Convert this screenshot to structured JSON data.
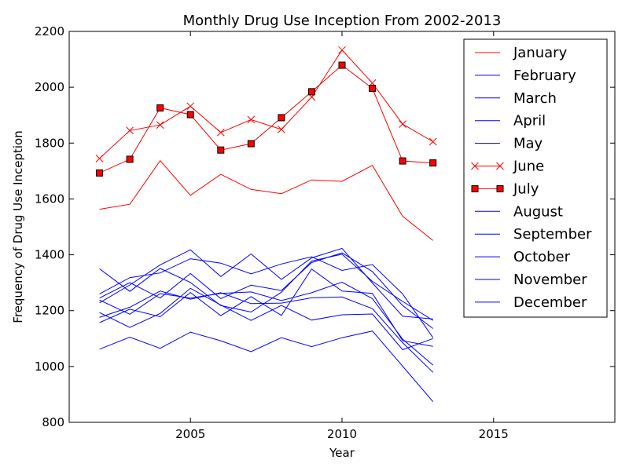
{
  "chart_data": {
    "type": "line",
    "title": "Monthly Drug Use Inception From 2002-2013",
    "xlabel": "Year",
    "ylabel": "Frequency of Drug Use Inception",
    "xlim": [
      2001,
      2019
    ],
    "ylim": [
      800,
      2200
    ],
    "xticks": [
      2005,
      2010,
      2015
    ],
    "yticks": [
      800,
      1000,
      1200,
      1400,
      1600,
      1800,
      2000,
      2200
    ],
    "grid": false,
    "legend_position": "top-right",
    "x": [
      2002,
      2003,
      2004,
      2005,
      2006,
      2007,
      2008,
      2009,
      2010,
      2011,
      2012,
      2013
    ],
    "series": [
      {
        "name": "January",
        "color": "#ff0000",
        "marker": "none",
        "values": [
          1563,
          1581,
          1737,
          1613,
          1688,
          1634,
          1619,
          1668,
          1663,
          1720,
          1538,
          1451
        ]
      },
      {
        "name": "February",
        "color": "#0000ff",
        "marker": "none",
        "values": [
          1062,
          1105,
          1065,
          1123,
          1092,
          1053,
          1103,
          1071,
          1103,
          1127,
          1001,
          874
        ]
      },
      {
        "name": "March",
        "color": "#0000ff",
        "marker": "none",
        "values": [
          1157,
          1205,
          1178,
          1265,
          1182,
          1250,
          1183,
          1349,
          1270,
          1262,
          1092,
          1072
        ]
      },
      {
        "name": "April",
        "color": "#0000ff",
        "marker": "none",
        "values": [
          1238,
          1187,
          1261,
          1245,
          1262,
          1267,
          1236,
          1264,
          1302,
          1243,
          1098,
          1005
        ]
      },
      {
        "name": "May",
        "color": "#0000ff",
        "marker": "none",
        "values": [
          1350,
          1269,
          1351,
          1301,
          1218,
          1195,
          1266,
          1378,
          1402,
          1305,
          1233,
          1165
        ]
      },
      {
        "name": "June",
        "color": "#ff0000",
        "marker": "x",
        "values": [
          1745,
          1845,
          1865,
          1932,
          1838,
          1884,
          1849,
          1965,
          2133,
          2015,
          1868,
          1805
        ]
      },
      {
        "name": "July",
        "color": "#ff0000",
        "marker": "s",
        "values": [
          1693,
          1742,
          1926,
          1902,
          1775,
          1798,
          1891,
          1984,
          2079,
          1996,
          1736,
          1729
        ]
      },
      {
        "name": "August",
        "color": "#0000ff",
        "marker": "none",
        "values": [
          1260,
          1318,
          1335,
          1386,
          1370,
          1332,
          1367,
          1393,
          1344,
          1365,
          1260,
          1103
        ]
      },
      {
        "name": "September",
        "color": "#0000ff",
        "marker": "none",
        "values": [
          1228,
          1292,
          1364,
          1418,
          1322,
          1403,
          1312,
          1389,
          1423,
          1299,
          1180,
          1170
        ]
      },
      {
        "name": "October",
        "color": "#0000ff",
        "marker": "none",
        "values": [
          1193,
          1140,
          1190,
          1280,
          1220,
          1165,
          1219,
          1166,
          1185,
          1188,
          1060,
          1100
        ]
      },
      {
        "name": "November",
        "color": "#0000ff",
        "marker": "none",
        "values": [
          1245,
          1300,
          1245,
          1333,
          1243,
          1291,
          1272,
          1372,
          1407,
          1340,
          1218,
          1136
        ]
      },
      {
        "name": "December",
        "color": "#0000ff",
        "marker": "none",
        "values": [
          1176,
          1212,
          1270,
          1241,
          1264,
          1225,
          1227,
          1246,
          1249,
          1207,
          1085,
          979
        ]
      }
    ]
  }
}
